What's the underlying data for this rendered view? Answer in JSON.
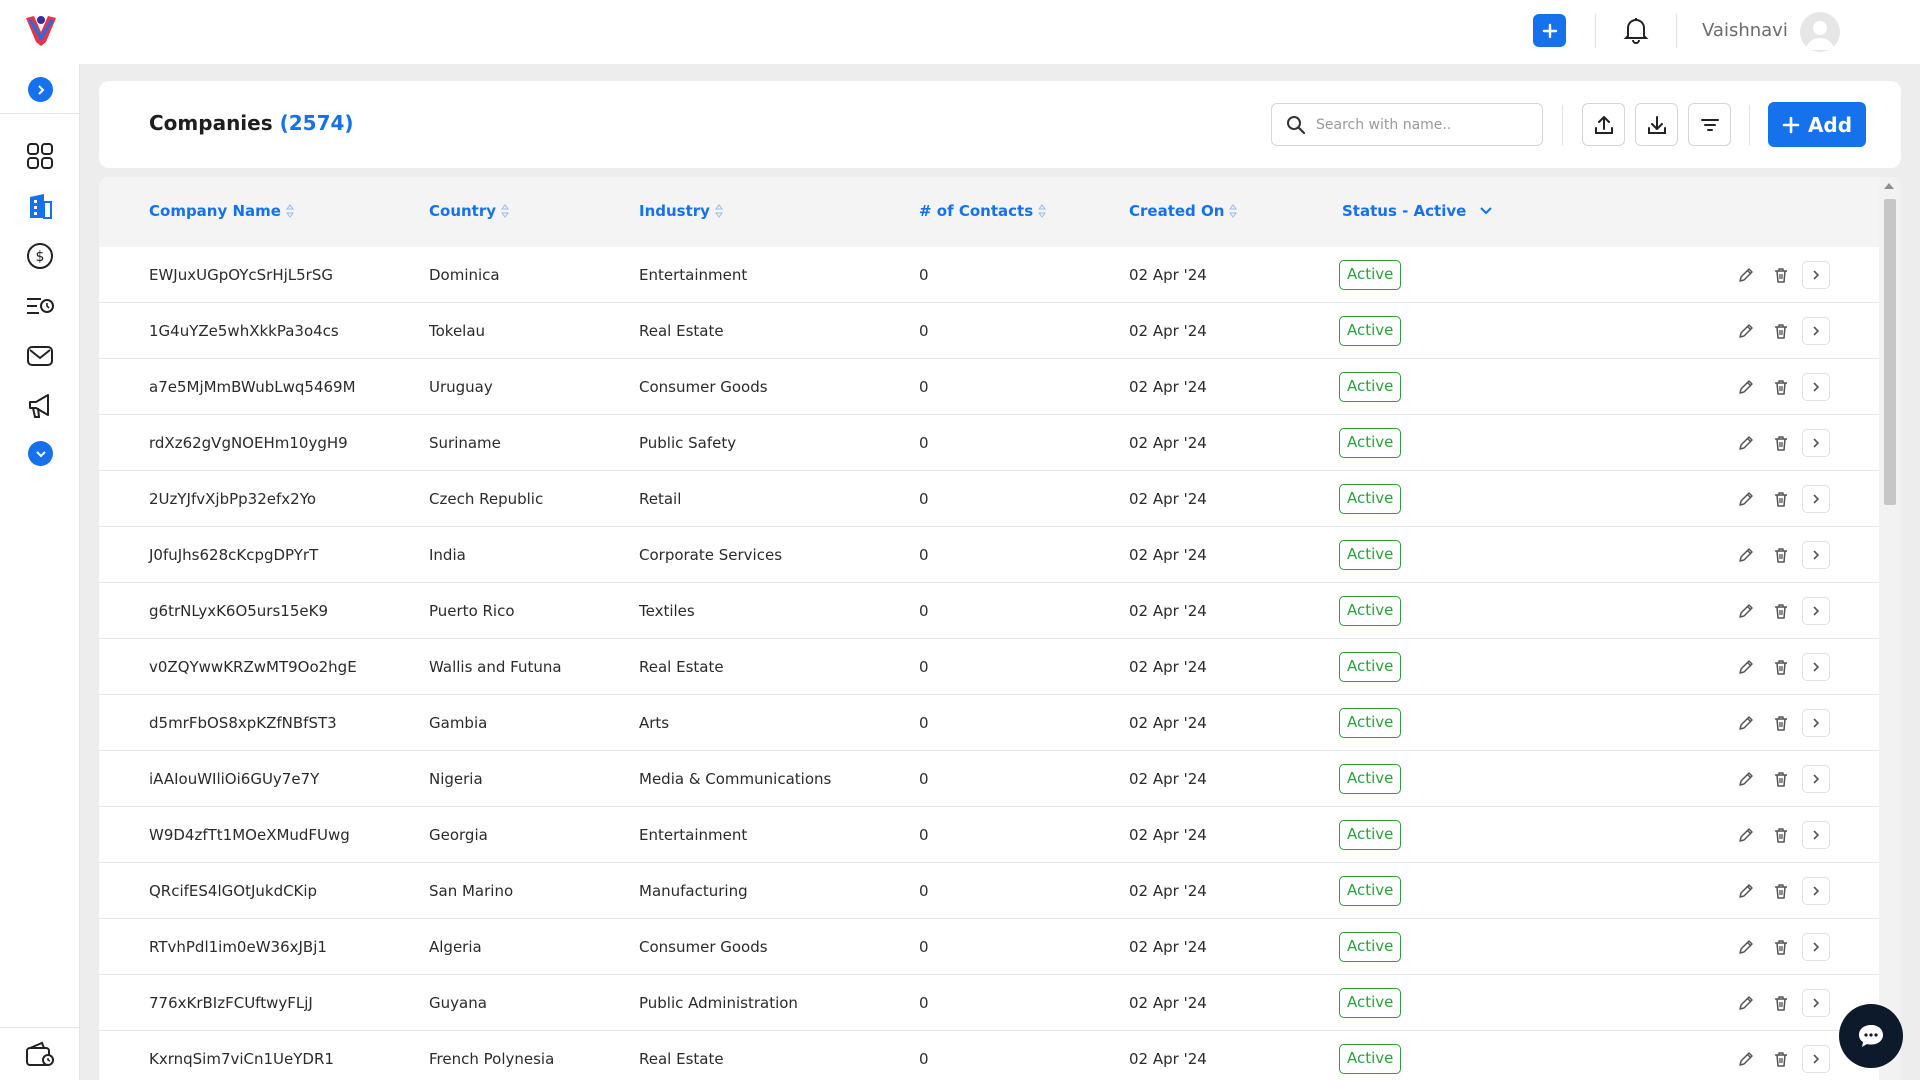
{
  "user": {
    "name": "Vaishnavi"
  },
  "page": {
    "title": "Companies",
    "count": "(2574)"
  },
  "search": {
    "placeholder": "Search with name.."
  },
  "actions": {
    "add_label": "Add"
  },
  "table": {
    "columns": {
      "company": "Company Name",
      "country": "Country",
      "industry": "Industry",
      "contacts": "# of Contacts",
      "created": "Created On",
      "status": "Status - Active"
    },
    "rows": [
      {
        "company": "EWJuxUGpOYcSrHjL5rSG",
        "country": "Dominica",
        "industry": "Entertainment",
        "contacts": "0",
        "created": "02 Apr '24",
        "status": "Active"
      },
      {
        "company": "1G4uYZe5whXkkPa3o4cs",
        "country": "Tokelau",
        "industry": "Real Estate",
        "contacts": "0",
        "created": "02 Apr '24",
        "status": "Active"
      },
      {
        "company": "a7e5MjMmBWubLwq5469M",
        "country": "Uruguay",
        "industry": "Consumer Goods",
        "contacts": "0",
        "created": "02 Apr '24",
        "status": "Active"
      },
      {
        "company": "rdXz62gVgNOEHm10ygH9",
        "country": "Suriname",
        "industry": "Public Safety",
        "contacts": "0",
        "created": "02 Apr '24",
        "status": "Active"
      },
      {
        "company": "2UzYJfvXjbPp32efx2Yo",
        "country": "Czech Republic",
        "industry": "Retail",
        "contacts": "0",
        "created": "02 Apr '24",
        "status": "Active"
      },
      {
        "company": "J0fuJhs628cKcpgDPYrT",
        "country": "India",
        "industry": "Corporate Services",
        "contacts": "0",
        "created": "02 Apr '24",
        "status": "Active"
      },
      {
        "company": "g6trNLyxK6O5urs15eK9",
        "country": "Puerto Rico",
        "industry": "Textiles",
        "contacts": "0",
        "created": "02 Apr '24",
        "status": "Active"
      },
      {
        "company": "v0ZQYwwKRZwMT9Oo2hgE",
        "country": "Wallis and Futuna",
        "industry": "Real Estate",
        "contacts": "0",
        "created": "02 Apr '24",
        "status": "Active"
      },
      {
        "company": "d5mrFbOS8xpKZfNBfST3",
        "country": "Gambia",
        "industry": "Arts",
        "contacts": "0",
        "created": "02 Apr '24",
        "status": "Active"
      },
      {
        "company": "iAAIouWIliOi6GUy7e7Y",
        "country": "Nigeria",
        "industry": "Media & Communications",
        "contacts": "0",
        "created": "02 Apr '24",
        "status": "Active"
      },
      {
        "company": "W9D4zfTt1MOeXMudFUwg",
        "country": "Georgia",
        "industry": "Entertainment",
        "contacts": "0",
        "created": "02 Apr '24",
        "status": "Active"
      },
      {
        "company": "QRcifES4lGOtJukdCKip",
        "country": "San Marino",
        "industry": "Manufacturing",
        "contacts": "0",
        "created": "02 Apr '24",
        "status": "Active"
      },
      {
        "company": "RTvhPdl1im0eW36xJBj1",
        "country": "Algeria",
        "industry": "Consumer Goods",
        "contacts": "0",
        "created": "02 Apr '24",
        "status": "Active"
      },
      {
        "company": "776xKrBIzFCUftwyFLjJ",
        "country": "Guyana",
        "industry": "Public Administration",
        "contacts": "0",
        "created": "02 Apr '24",
        "status": "Active"
      },
      {
        "company": "KxrnqSim7viCn1UeYDR1",
        "country": "French Polynesia",
        "industry": "Real Estate",
        "contacts": "0",
        "created": "02 Apr '24",
        "status": "Active"
      }
    ]
  },
  "icons": {
    "logo": "logo-icon",
    "top_add": "plus-icon",
    "bell": "bell-icon",
    "avatar": "user-icon",
    "sidebar": [
      "chevron-right-icon",
      "dashboard-icon",
      "building-icon",
      "dollar-icon",
      "tasks-icon",
      "mail-icon",
      "megaphone-icon",
      "chevron-down-icon",
      "wallet-icon"
    ],
    "row_actions": [
      "edit-icon",
      "trash-icon",
      "chevron-right-icon"
    ]
  },
  "colors": {
    "primary": "#1672ec",
    "active_status": "#2e9e3e",
    "chat_fab": "#0d1a2b"
  }
}
